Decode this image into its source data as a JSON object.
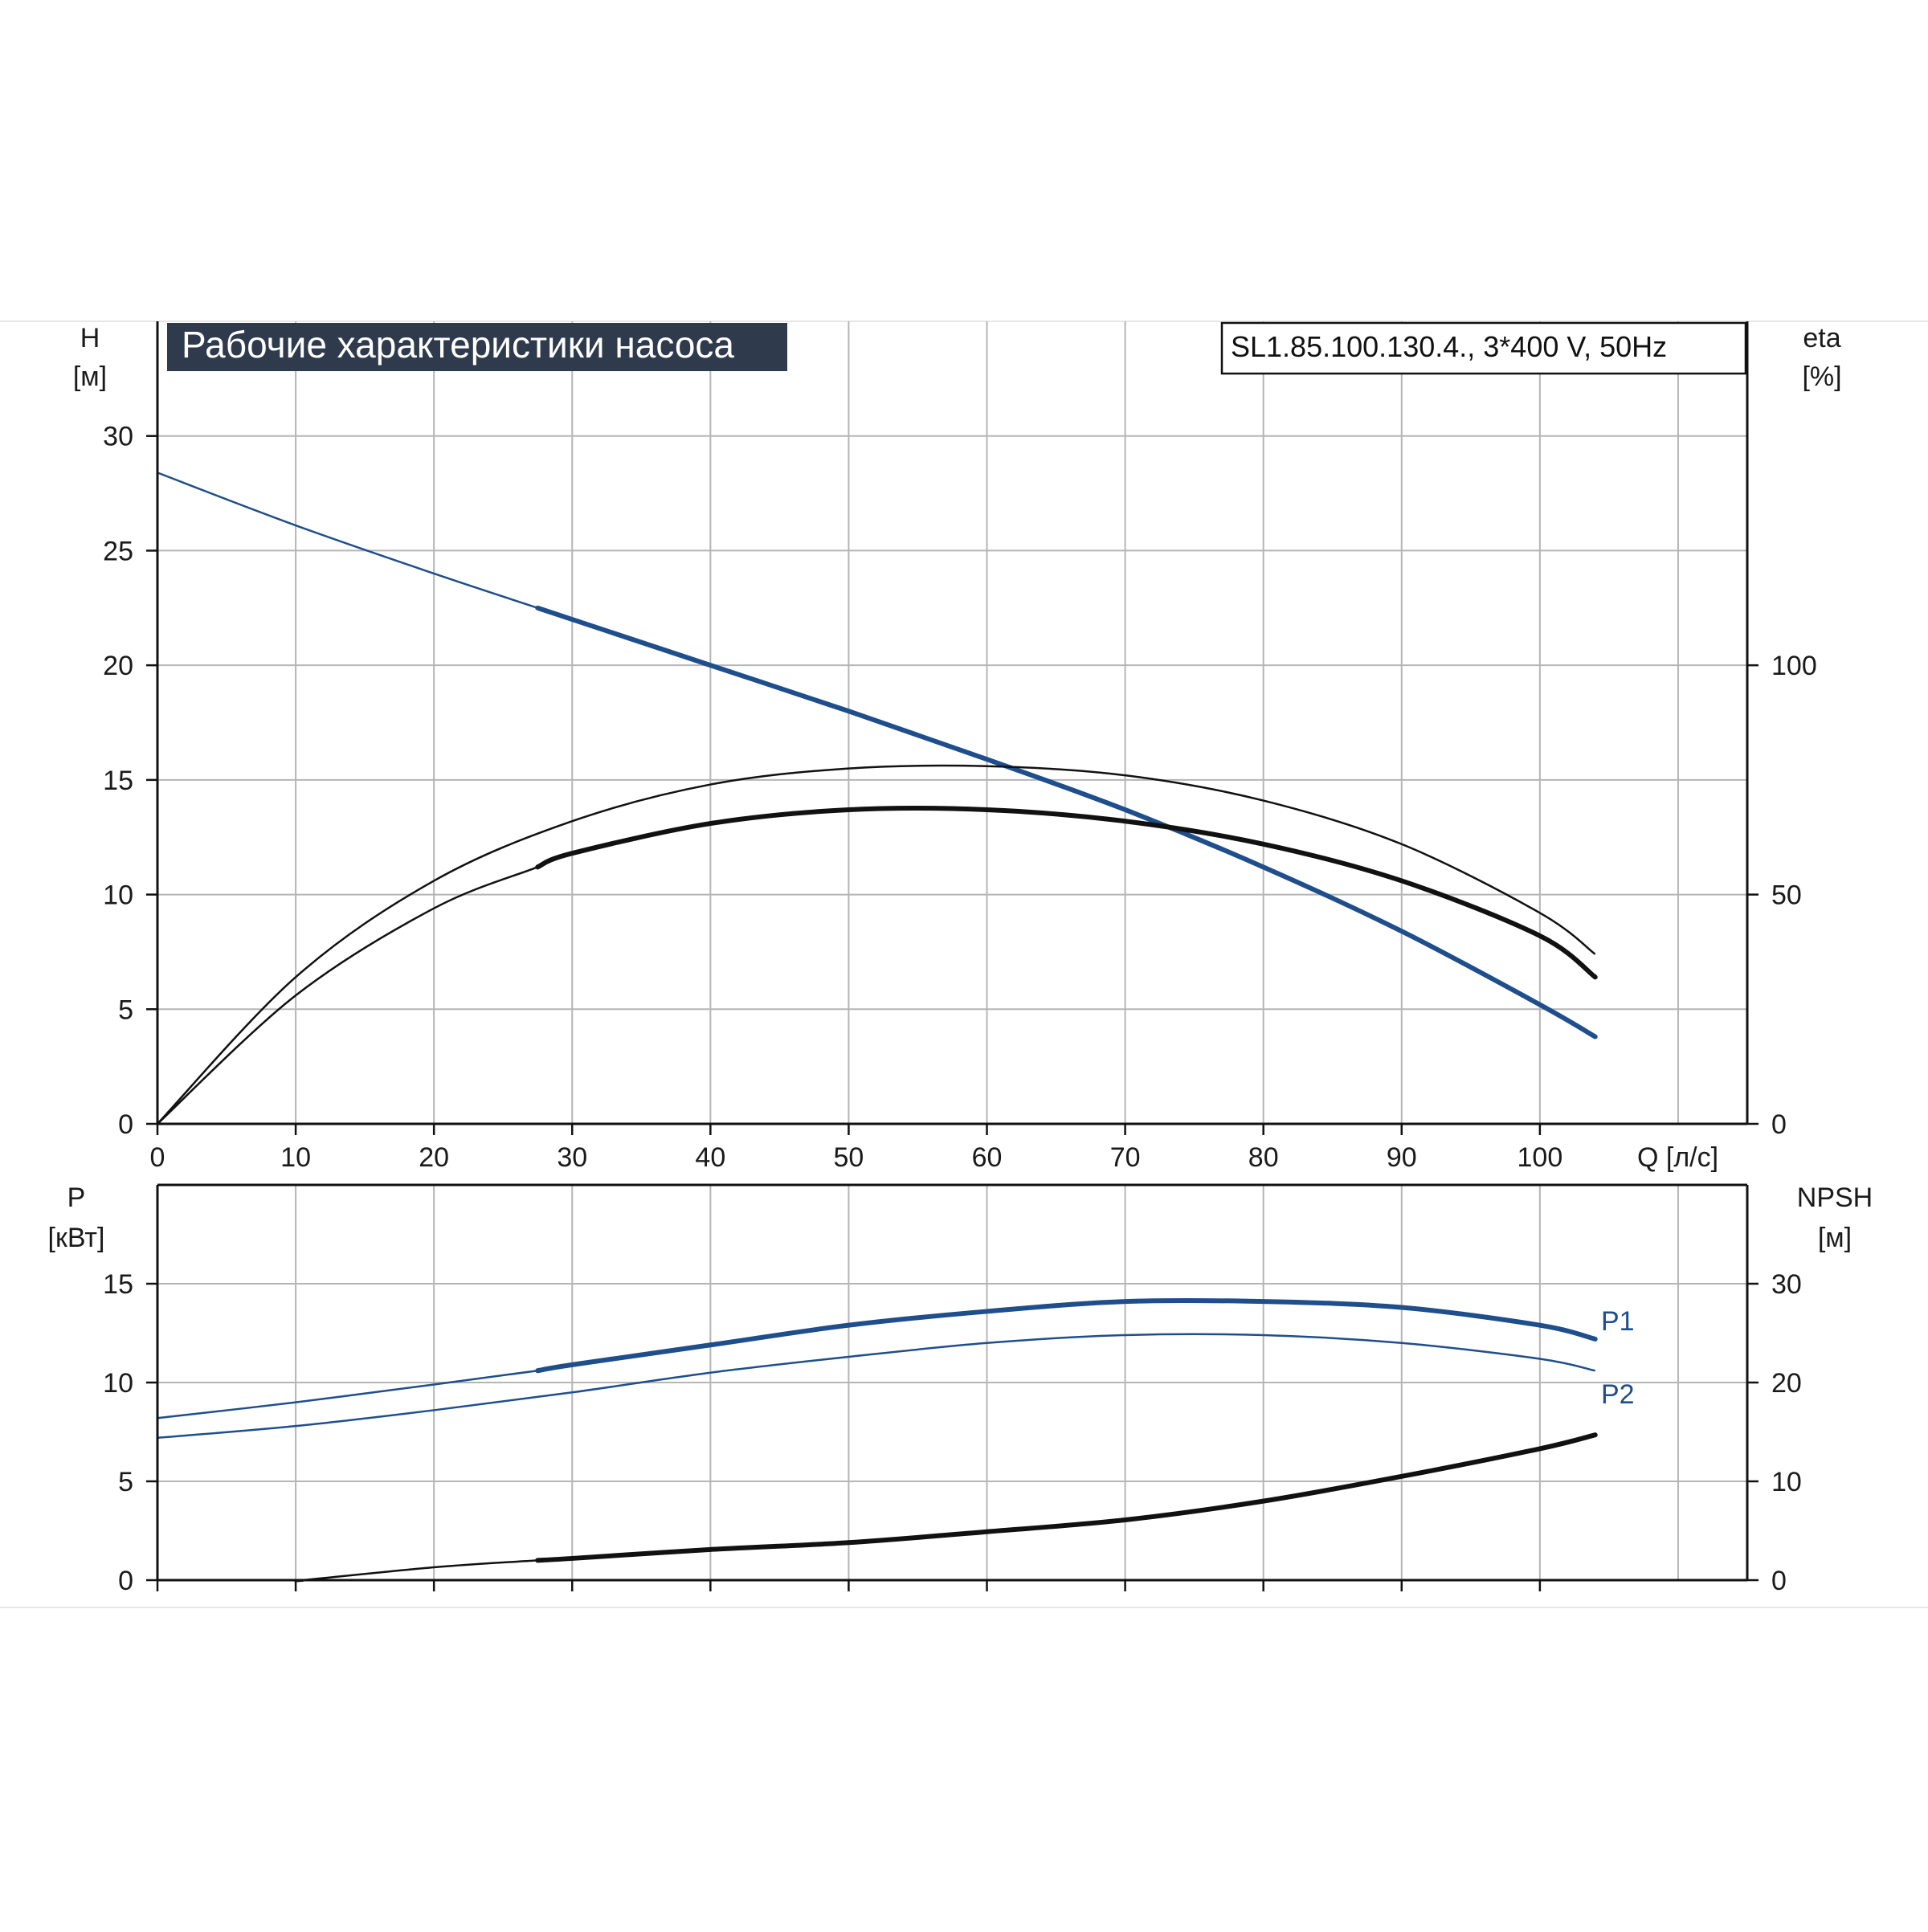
{
  "header": {
    "title": "Рабочие характеристики насоса",
    "model": "SL1.85.100.130.4., 3*400 V, 50Hz"
  },
  "colors": {
    "blue": "#1f4e8c",
    "black": "#111111",
    "grid": "#b5b5b5",
    "title_bg": "#2f3b4c",
    "title_fg": "#ffffff"
  },
  "chart_data": [
    {
      "type": "line",
      "name": "top",
      "xlabel": "Q [л/с]",
      "ylabel": [
        "H",
        "[м]"
      ],
      "y2label": [
        "eta",
        "[%]"
      ],
      "xlim": [
        0,
        115
      ],
      "ylim": [
        0,
        35
      ],
      "y2lim": [
        0,
        175
      ],
      "grid": true,
      "x_ticks": [
        0,
        10,
        20,
        30,
        40,
        50,
        60,
        70,
        80,
        90,
        100
      ],
      "y_ticks": [
        0,
        5,
        10,
        15,
        20,
        25,
        30
      ],
      "y2_ticks": [
        0,
        50,
        100
      ],
      "series": [
        {
          "id": "H",
          "color": "#1f4e8c",
          "axis": "left",
          "width": 2.5,
          "bold_from": 27.5,
          "x": [
            0,
            10,
            20,
            27.5,
            30,
            40,
            50,
            60,
            70,
            80,
            90,
            100,
            104
          ],
          "y": [
            28.4,
            26.1,
            24.0,
            22.5,
            22.0,
            20.0,
            18.0,
            15.9,
            13.7,
            11.2,
            8.4,
            5.2,
            3.8
          ]
        },
        {
          "id": "eta1",
          "color": "#111111",
          "axis": "right",
          "width": 2.5,
          "x": [
            0,
            10,
            20,
            30,
            40,
            50,
            60,
            70,
            80,
            90,
            100,
            104
          ],
          "y": [
            0,
            32,
            53,
            66,
            74,
            77.5,
            78,
            76,
            70.5,
            61,
            46,
            37
          ]
        },
        {
          "id": "eta2",
          "color": "#111111",
          "axis": "right",
          "width": 2.5,
          "bold_from": 27.5,
          "x": [
            0,
            10,
            20,
            27.5,
            30,
            40,
            50,
            60,
            70,
            80,
            90,
            100,
            104
          ],
          "y": [
            0,
            28,
            47,
            56,
            59,
            65.5,
            68.5,
            68.5,
            66,
            61,
            53,
            41,
            32
          ]
        }
      ]
    },
    {
      "type": "line",
      "name": "bottom",
      "ylabel": [
        "P",
        "[кВт]"
      ],
      "y2label": [
        "NPSH",
        "[м]"
      ],
      "xlim": [
        0,
        115
      ],
      "ylim": [
        0,
        20
      ],
      "y2lim": [
        0,
        40
      ],
      "grid": true,
      "x_ticks": [
        0,
        10,
        20,
        30,
        40,
        50,
        60,
        70,
        80,
        90,
        100
      ],
      "y_ticks": [
        0,
        5,
        10,
        15
      ],
      "y2_ticks": [
        0,
        10,
        20,
        30
      ],
      "series": [
        {
          "id": "P1",
          "name": "P1",
          "color": "#1f4e8c",
          "axis": "left",
          "width": 2.5,
          "bold_from": 27.5,
          "x": [
            0,
            10,
            20,
            27.5,
            30,
            40,
            50,
            60,
            70,
            80,
            90,
            100,
            104
          ],
          "y": [
            8.2,
            9.0,
            9.9,
            10.6,
            10.9,
            11.9,
            12.9,
            13.6,
            14.1,
            14.1,
            13.8,
            12.9,
            12.2
          ]
        },
        {
          "id": "P2",
          "name": "P2",
          "color": "#1f4e8c",
          "axis": "left",
          "width": 2.5,
          "x": [
            0,
            10,
            20,
            30,
            40,
            50,
            60,
            70,
            80,
            90,
            100,
            104
          ],
          "y": [
            7.2,
            7.8,
            8.6,
            9.5,
            10.5,
            11.3,
            12.0,
            12.4,
            12.4,
            12.0,
            11.2,
            10.6
          ]
        },
        {
          "id": "NPSH",
          "color": "#111111",
          "axis": "right",
          "width": 2.5,
          "bold_from": 27.5,
          "x": [
            0,
            10,
            10.5,
            20,
            27.5,
            30,
            40,
            50,
            60,
            70,
            80,
            90,
            100,
            104
          ],
          "y": [
            0,
            0,
            0,
            1.3,
            2.0,
            2.2,
            3.1,
            3.8,
            4.9,
            6.1,
            8.0,
            10.5,
            13.3,
            14.7
          ]
        }
      ]
    }
  ]
}
